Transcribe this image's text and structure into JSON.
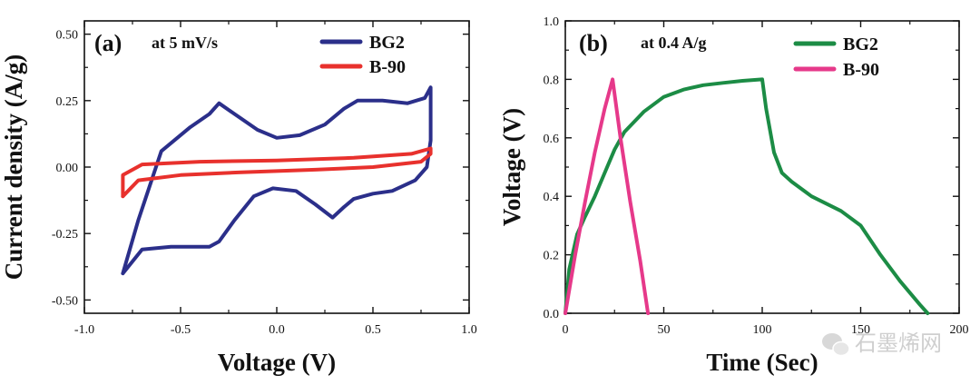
{
  "chart_data": [
    {
      "type": "line",
      "panel_label": "(a)",
      "condition": "at 5 mV/s",
      "xlabel": "Voltage (V)",
      "ylabel": "Current density (A/g)",
      "xlim": [
        -1.0,
        1.0
      ],
      "ylim": [
        -0.55,
        0.55
      ],
      "xticks": [
        "-1.0",
        "-0.5",
        "0.0",
        "0.5",
        "1.0"
      ],
      "yticks": [
        "-0.50",
        "-0.25",
        "0.00",
        "0.25",
        "0.50"
      ],
      "legend_position": "top-right",
      "series": [
        {
          "name": "BG2",
          "color": "#2b2f8a",
          "x": [
            -0.8,
            -0.72,
            -0.6,
            -0.45,
            -0.35,
            -0.3,
            -0.22,
            -0.1,
            0.0,
            0.12,
            0.25,
            0.35,
            0.42,
            0.55,
            0.68,
            0.77,
            0.8,
            0.8,
            0.78,
            0.72,
            0.6,
            0.5,
            0.4,
            0.35,
            0.29,
            0.2,
            0.1,
            -0.02,
            -0.12,
            -0.22,
            -0.3,
            -0.35,
            -0.55,
            -0.7,
            -0.8
          ],
          "y": [
            -0.4,
            -0.2,
            0.06,
            0.15,
            0.2,
            0.24,
            0.2,
            0.14,
            0.11,
            0.12,
            0.16,
            0.22,
            0.25,
            0.25,
            0.24,
            0.26,
            0.3,
            0.1,
            0.0,
            -0.05,
            -0.09,
            -0.1,
            -0.12,
            -0.15,
            -0.19,
            -0.14,
            -0.09,
            -0.08,
            -0.11,
            -0.2,
            -0.28,
            -0.3,
            -0.3,
            -0.31,
            -0.4
          ]
        },
        {
          "name": "B-90",
          "color": "#e8312d",
          "x": [
            -0.8,
            -0.72,
            -0.5,
            -0.2,
            0.2,
            0.5,
            0.75,
            0.8,
            0.8,
            0.7,
            0.4,
            0.0,
            -0.4,
            -0.7,
            -0.8,
            -0.8
          ],
          "y": [
            -0.11,
            -0.05,
            -0.03,
            -0.02,
            -0.01,
            0.0,
            0.02,
            0.05,
            0.07,
            0.05,
            0.035,
            0.025,
            0.02,
            0.01,
            -0.03,
            -0.11
          ]
        }
      ]
    },
    {
      "type": "line",
      "panel_label": "(b)",
      "condition": "at 0.4 A/g",
      "xlabel": "Time (Sec)",
      "ylabel": "Voltage (V)",
      "xlim": [
        0,
        200
      ],
      "ylim": [
        0,
        1.0
      ],
      "xticks": [
        "0",
        "50",
        "100",
        "150",
        "200"
      ],
      "yticks": [
        "0.0",
        "0.2",
        "0.4",
        "0.6",
        "0.8",
        "1.0"
      ],
      "legend_position": "top-right",
      "series": [
        {
          "name": "BG2",
          "color": "#1c8c45",
          "x": [
            0,
            2,
            6,
            10,
            15,
            20,
            25,
            30,
            40,
            50,
            60,
            70,
            80,
            90,
            100,
            102,
            106,
            110,
            115,
            125,
            140,
            150,
            160,
            170,
            180,
            184
          ],
          "y": [
            0,
            0.15,
            0.27,
            0.33,
            0.4,
            0.48,
            0.56,
            0.62,
            0.69,
            0.74,
            0.765,
            0.78,
            0.788,
            0.795,
            0.8,
            0.7,
            0.55,
            0.48,
            0.45,
            0.4,
            0.35,
            0.3,
            0.2,
            0.11,
            0.03,
            0
          ]
        },
        {
          "name": "B-90",
          "color": "#e6398a",
          "x": [
            0,
            5,
            10,
            15,
            20,
            24,
            28,
            33,
            38,
            42
          ],
          "y": [
            0,
            0.2,
            0.38,
            0.55,
            0.7,
            0.8,
            0.6,
            0.38,
            0.18,
            0
          ]
        }
      ]
    }
  ],
  "watermark": {
    "text": "石墨烯网",
    "icon": "wechat-icon"
  }
}
